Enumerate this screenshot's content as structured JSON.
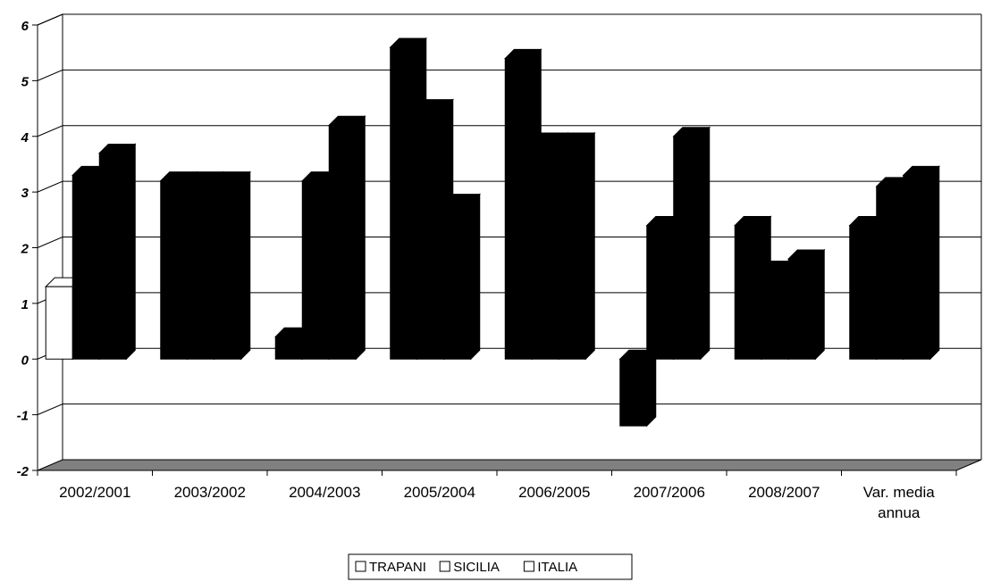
{
  "chart_data": {
    "type": "bar",
    "title": "",
    "xlabel": "",
    "ylabel": "",
    "ylim": [
      -2,
      6
    ],
    "yticks": [
      "6",
      "5",
      "4",
      "3",
      "2",
      "1",
      "0",
      "-1",
      "-2"
    ],
    "categories": [
      [
        "2002/2001"
      ],
      [
        "2003/2002"
      ],
      [
        "2004/2003"
      ],
      [
        "2005/2004"
      ],
      [
        "2006/2005"
      ],
      [
        "2007/2006"
      ],
      [
        "2008/2007"
      ],
      [
        "Var. media",
        "annua"
      ]
    ],
    "series": [
      {
        "name": "TRAPANI",
        "values": [
          1.3,
          3.2,
          0.4,
          5.6,
          5.4,
          -1.2,
          2.4,
          2.4
        ]
      },
      {
        "name": "SICILIA",
        "values": [
          3.3,
          3.2,
          3.2,
          4.5,
          3.9,
          2.4,
          1.6,
          3.1
        ]
      },
      {
        "name": "ITALIA",
        "values": [
          3.7,
          3.2,
          4.2,
          2.8,
          3.9,
          4.0,
          1.8,
          3.3
        ]
      }
    ],
    "grid": true,
    "legend_position": "bottom",
    "colors": {
      "bar_fill": "#000000",
      "trapani_2002_fill": "#ffffff",
      "floor": "#808080",
      "gridline": "#000000"
    }
  }
}
